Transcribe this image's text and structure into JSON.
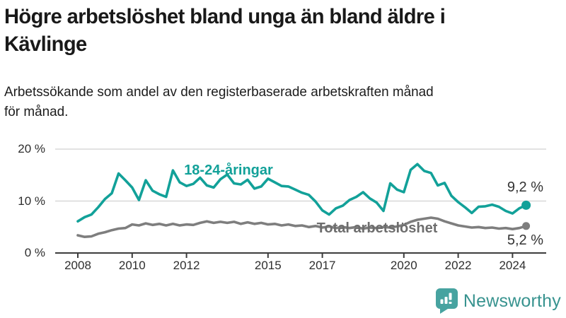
{
  "header": {
    "title_line1": "Högre arbetslöshet bland unga än bland äldre i",
    "title_line2": "Kävlinge",
    "subtitle_line1": "Arbetssökande som andel av den registerbaserade arbetskraften månad",
    "subtitle_line2": "för månad."
  },
  "chart_data": {
    "type": "line",
    "unit": "%",
    "grid": "horizontal",
    "ylim": [
      0,
      20
    ],
    "xlim": [
      2008,
      2024.5
    ],
    "y_ticks": [
      {
        "value": 0,
        "label": "0 %"
      },
      {
        "value": 10,
        "label": "10 %"
      },
      {
        "value": 20,
        "label": "20 %"
      }
    ],
    "x_tick_years": [
      {
        "value": 2008,
        "label": "2008"
      },
      {
        "value": 2010,
        "label": "2010"
      },
      {
        "value": 2012,
        "label": "2012"
      },
      {
        "value": 2015,
        "label": "2015"
      },
      {
        "value": 2017,
        "label": "2017"
      },
      {
        "value": 2020,
        "label": "2020"
      },
      {
        "value": 2022,
        "label": "2022"
      },
      {
        "value": 2024,
        "label": "2024"
      }
    ],
    "x": [
      2008,
      2008.25,
      2008.5,
      2008.75,
      2009,
      2009.25,
      2009.5,
      2009.75,
      2010,
      2010.25,
      2010.5,
      2010.75,
      2011,
      2011.25,
      2011.5,
      2011.75,
      2012,
      2012.25,
      2012.5,
      2012.75,
      2013,
      2013.25,
      2013.5,
      2013.75,
      2014,
      2014.25,
      2014.5,
      2014.75,
      2015,
      2015.25,
      2015.5,
      2015.75,
      2016,
      2016.25,
      2016.5,
      2016.75,
      2017,
      2017.25,
      2017.5,
      2017.75,
      2018,
      2018.25,
      2018.5,
      2018.75,
      2019,
      2019.25,
      2019.5,
      2019.75,
      2020,
      2020.25,
      2020.5,
      2020.75,
      2021,
      2021.25,
      2021.5,
      2021.75,
      2022,
      2022.25,
      2022.5,
      2022.75,
      2023,
      2023.25,
      2023.5,
      2023.75,
      2024,
      2024.25,
      2024.5
    ],
    "series": [
      {
        "name": "18-24-åringar",
        "color": "#12A199",
        "end_label": "9,2 %",
        "end_value": 9.2,
        "values": [
          6.1,
          6.9,
          7.4,
          8.8,
          10.4,
          11.5,
          15.3,
          14.0,
          12.6,
          10.2,
          14.0,
          12.0,
          11.3,
          10.8,
          15.9,
          13.6,
          12.9,
          13.3,
          14.5,
          13.0,
          12.6,
          14.2,
          15.1,
          13.4,
          13.2,
          14.1,
          12.4,
          12.8,
          14.3,
          13.6,
          12.9,
          12.8,
          12.2,
          11.6,
          11.2,
          9.9,
          8.2,
          7.4,
          8.6,
          9.1,
          10.2,
          10.8,
          11.7,
          10.5,
          9.7,
          8.1,
          13.4,
          12.2,
          11.7,
          16.0,
          17.1,
          15.8,
          15.4,
          13.0,
          13.5,
          11.0,
          9.8,
          8.8,
          7.7,
          8.9,
          9.0,
          9.3,
          8.9,
          8.1,
          7.6,
          8.6,
          9.2
        ]
      },
      {
        "name": "Total arbetslöshet",
        "color": "#7E7E7E",
        "end_label": "5,2 %",
        "end_value": 5.2,
        "values": [
          3.4,
          3.1,
          3.2,
          3.7,
          4.0,
          4.4,
          4.7,
          4.8,
          5.5,
          5.3,
          5.7,
          5.4,
          5.6,
          5.3,
          5.6,
          5.3,
          5.5,
          5.4,
          5.8,
          6.1,
          5.8,
          6.0,
          5.8,
          6.0,
          5.6,
          5.9,
          5.6,
          5.8,
          5.5,
          5.6,
          5.3,
          5.5,
          5.2,
          5.3,
          5.0,
          5.2,
          4.9,
          5.1,
          4.8,
          5.0,
          4.8,
          5.0,
          4.7,
          4.9,
          4.8,
          5.0,
          4.9,
          5.1,
          5.4,
          6.0,
          6.4,
          6.6,
          6.8,
          6.6,
          6.1,
          5.7,
          5.3,
          5.1,
          4.9,
          5.0,
          4.8,
          4.9,
          4.7,
          4.8,
          4.6,
          4.8,
          5.2
        ]
      }
    ]
  },
  "logo": {
    "text": "Newsworthy",
    "icon": "newsworthy-chart-bubble-icon",
    "bubble_color": "#47A3A0",
    "text_color": "#38938F"
  },
  "colors": {
    "gridline": "#d8d8d8",
    "axis": "#3c3c3c",
    "youth_line": "#12A199",
    "total_line": "#7E7E7E",
    "total_label": "#6d6d6d"
  }
}
